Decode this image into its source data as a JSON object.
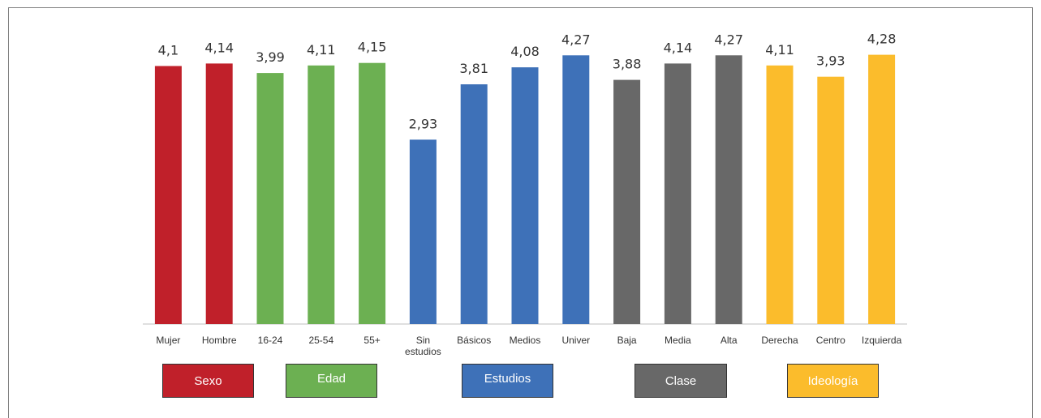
{
  "chart_data": {
    "type": "bar",
    "categories": [
      "Mujer",
      "Hombre",
      "16-24",
      "25-54",
      "55+",
      "Sin estudios",
      "Básicos",
      "Medios",
      "Univer",
      "Baja",
      "Media",
      "Alta",
      "Derecha",
      "Centro",
      "Izquierda"
    ],
    "category_lines": [
      [
        "Mujer"
      ],
      [
        "Hombre"
      ],
      [
        "16-24"
      ],
      [
        "25-54"
      ],
      [
        "55+"
      ],
      [
        "Sin",
        "estudios"
      ],
      [
        "Básicos"
      ],
      [
        "Medios"
      ],
      [
        "Univer"
      ],
      [
        "Baja"
      ],
      [
        "Media"
      ],
      [
        "Alta"
      ],
      [
        "Derecha"
      ],
      [
        "Centro"
      ],
      [
        "Izquierda"
      ]
    ],
    "values": [
      4.1,
      4.14,
      3.99,
      4.11,
      4.15,
      2.93,
      3.81,
      4.08,
      4.27,
      3.88,
      4.14,
      4.27,
      4.11,
      3.93,
      4.28
    ],
    "value_labels": [
      "4,1",
      "4,14",
      "3,99",
      "4,11",
      "4,15",
      "2,93",
      "3,81",
      "4,08",
      "4,27",
      "3,88",
      "4,14",
      "4,27",
      "4,11",
      "3,93",
      "4,28"
    ],
    "groups": [
      "Sexo",
      "Sexo",
      "Edad",
      "Edad",
      "Edad",
      "Estudios",
      "Estudios",
      "Estudios",
      "Estudios",
      "Clase",
      "Clase",
      "Clase",
      "Ideología",
      "Ideología",
      "Ideología"
    ],
    "ylim": [
      0,
      4.3
    ],
    "grid": false,
    "title": "",
    "xlabel": "",
    "ylabel": ""
  },
  "legend": [
    {
      "label": "Sexo",
      "color": "#c0202a"
    },
    {
      "label": "Edad",
      "color": "#6cb052"
    },
    {
      "label": "Estudios",
      "color": "#3e71b8"
    },
    {
      "label": "Clase",
      "color": "#686868"
    },
    {
      "label": "Ideología",
      "color": "#fbbc2c"
    }
  ]
}
